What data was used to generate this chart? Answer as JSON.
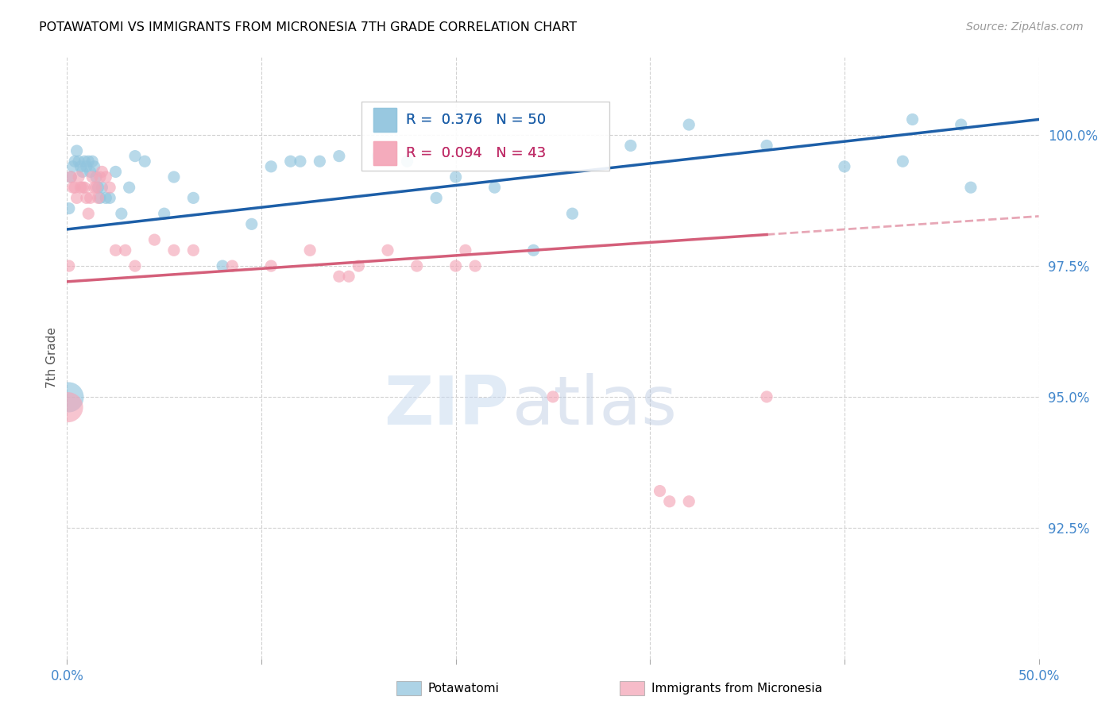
{
  "title": "POTAWATOMI VS IMMIGRANTS FROM MICRONESIA 7TH GRADE CORRELATION CHART",
  "source": "Source: ZipAtlas.com",
  "ylabel": "7th Grade",
  "xlim": [
    0.0,
    50.0
  ],
  "ylim": [
    90.0,
    101.5
  ],
  "yticks": [
    92.5,
    95.0,
    97.5,
    100.0
  ],
  "xticks": [
    0.0,
    10.0,
    20.0,
    30.0,
    40.0,
    50.0
  ],
  "blue_r": 0.376,
  "blue_n": 50,
  "pink_r": 0.094,
  "pink_n": 43,
  "blue_color": "#92c5de",
  "pink_color": "#f4a6b8",
  "blue_line_color": "#1d5fa8",
  "pink_line_color": "#d45f7a",
  "blue_scatter_x": [
    0.1,
    0.2,
    0.3,
    0.4,
    0.5,
    0.6,
    0.7,
    0.8,
    0.9,
    1.0,
    1.1,
    1.2,
    1.3,
    1.4,
    1.5,
    1.6,
    1.7,
    1.8,
    2.0,
    2.2,
    2.5,
    2.8,
    3.2,
    3.5,
    4.0,
    5.0,
    5.5,
    6.5,
    8.0,
    9.5,
    10.5,
    11.5,
    12.0,
    13.0,
    14.0,
    16.0,
    17.5,
    19.0,
    20.0,
    22.0,
    24.0,
    26.0,
    29.0,
    32.0,
    36.0,
    40.0,
    43.0,
    43.5,
    46.0,
    46.5
  ],
  "blue_scatter_y": [
    98.6,
    99.2,
    99.4,
    99.5,
    99.7,
    99.5,
    99.4,
    99.3,
    99.5,
    99.4,
    99.5,
    99.3,
    99.5,
    99.4,
    99.2,
    99.0,
    98.8,
    99.0,
    98.8,
    98.8,
    99.3,
    98.5,
    99.0,
    99.6,
    99.5,
    98.5,
    99.2,
    98.8,
    97.5,
    98.3,
    99.4,
    99.5,
    99.5,
    99.5,
    99.6,
    99.6,
    99.5,
    98.8,
    99.2,
    99.0,
    97.8,
    98.5,
    99.8,
    100.2,
    99.8,
    99.4,
    99.5,
    100.3,
    100.2,
    99.0
  ],
  "blue_scatter_sizes": [
    120,
    120,
    120,
    120,
    120,
    120,
    120,
    120,
    120,
    120,
    120,
    120,
    120,
    120,
    120,
    120,
    120,
    120,
    120,
    120,
    120,
    120,
    120,
    120,
    120,
    120,
    120,
    120,
    120,
    120,
    120,
    120,
    120,
    120,
    120,
    120,
    120,
    120,
    120,
    120,
    120,
    120,
    120,
    120,
    120,
    120,
    120,
    120,
    120,
    120
  ],
  "pink_scatter_x": [
    0.05,
    0.1,
    0.2,
    0.3,
    0.4,
    0.5,
    0.6,
    0.7,
    0.8,
    0.9,
    1.0,
    1.1,
    1.2,
    1.3,
    1.4,
    1.5,
    1.6,
    1.7,
    1.8,
    2.0,
    2.2,
    2.5,
    3.0,
    3.5,
    4.5,
    5.5,
    6.5,
    8.5,
    10.5,
    12.5,
    14.0,
    14.5,
    15.0,
    16.5,
    18.0,
    20.0,
    20.5,
    21.0,
    25.0,
    30.5,
    31.0,
    32.0,
    36.0
  ],
  "pink_scatter_y": [
    94.8,
    97.5,
    99.2,
    99.0,
    99.0,
    98.8,
    99.2,
    99.0,
    99.0,
    99.0,
    98.8,
    98.5,
    98.8,
    99.2,
    99.0,
    99.0,
    98.8,
    99.2,
    99.3,
    99.2,
    99.0,
    97.8,
    97.8,
    97.5,
    98.0,
    97.8,
    97.8,
    97.5,
    97.5,
    97.8,
    97.3,
    97.3,
    97.5,
    97.8,
    97.5,
    97.5,
    97.8,
    97.5,
    95.0,
    93.2,
    93.0,
    93.0,
    95.0
  ],
  "pink_scatter_sizes": [
    750,
    120,
    120,
    120,
    120,
    120,
    120,
    120,
    120,
    120,
    120,
    120,
    120,
    120,
    120,
    120,
    120,
    120,
    120,
    120,
    120,
    120,
    120,
    120,
    120,
    120,
    120,
    120,
    120,
    120,
    120,
    120,
    120,
    120,
    120,
    120,
    120,
    120,
    120,
    120,
    120,
    120,
    120
  ],
  "blue_big_x": [
    0.05
  ],
  "blue_big_y": [
    95.0
  ],
  "blue_big_size": [
    750
  ],
  "watermark_zip": "ZIP",
  "watermark_atlas": "atlas",
  "legend_blue_label": "Potawatomi",
  "legend_pink_label": "Immigrants from Micronesia",
  "blue_line_intercept": 98.2,
  "blue_line_slope": 0.042,
  "pink_line_intercept": 97.2,
  "pink_line_slope": 0.025,
  "pink_data_max_x": 36.0
}
